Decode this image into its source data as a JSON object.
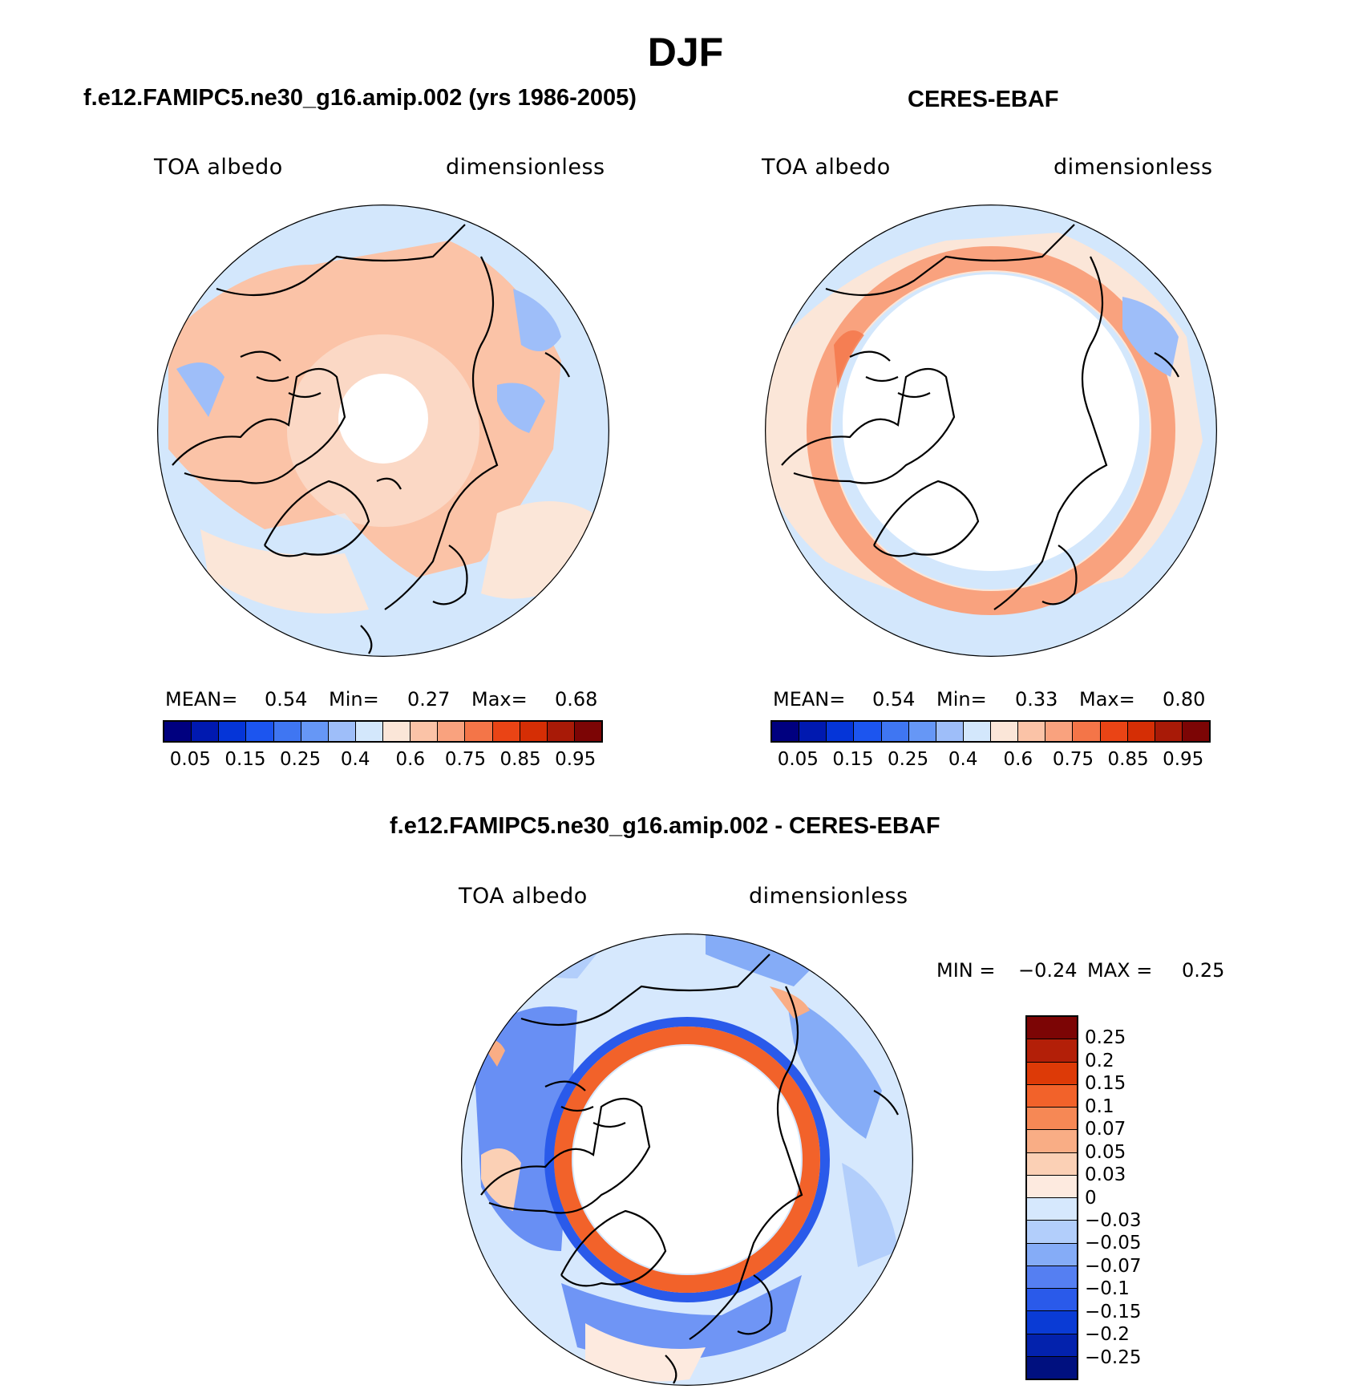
{
  "title": "DJF",
  "colors": {
    "seq": [
      "#00007f",
      "#0019b0",
      "#0535d8",
      "#1c55ef",
      "#3f76f2",
      "#6697f6",
      "#9ebef9",
      "#d3e7fc",
      "#fbe6d8",
      "#fbc3a7",
      "#f9a27e",
      "#f47548",
      "#ea4415",
      "#d52e05",
      "#a81a07",
      "#7c0505"
    ],
    "diff": [
      "#7c0505",
      "#b31f08",
      "#dd3a07",
      "#f2622a",
      "#f68855",
      "#f9ad85",
      "#fbd0b5",
      "#fdeadf",
      "#d6e8fd",
      "#b2cefb",
      "#85acf7",
      "#557ff2",
      "#2a5aea",
      "#0a3bd5",
      "#0322ad",
      "#00107f"
    ],
    "coast": "#000000",
    "land_light": "#fbe6d8",
    "land_mid": "#fbc3a7",
    "ocean_light": "#d3e7fc",
    "ocean_mid": "#9ebef9"
  },
  "panels": [
    {
      "title": "f.e12.FAMIPC5.ne30_g16.amip.002 (yrs 1986-2005)",
      "left_label": "TOA albedo",
      "right_label": "dimensionless",
      "stats": {
        "mean_label": "MEAN=",
        "mean": "0.54",
        "min_label": "Min=",
        "min": "0.27",
        "max_label": "Max=",
        "max": "0.68"
      },
      "ticks": [
        "0.05",
        "0.15",
        "0.25",
        "0.4",
        "0.6",
        "0.75",
        "0.85",
        "0.95"
      ]
    },
    {
      "title": "CERES-EBAF",
      "left_label": "TOA albedo",
      "right_label": "dimensionless",
      "stats": {
        "mean_label": "MEAN=",
        "mean": "0.54",
        "min_label": "Min=",
        "min": "0.33",
        "max_label": "Max=",
        "max": "0.80"
      },
      "ticks": [
        "0.05",
        "0.15",
        "0.25",
        "0.4",
        "0.6",
        "0.75",
        "0.85",
        "0.95"
      ]
    },
    {
      "title": "f.e12.FAMIPC5.ne30_g16.amip.002 - CERES-EBAF",
      "left_label": "TOA albedo",
      "right_label": "dimensionless",
      "minmax": {
        "min_label": "MIN =",
        "min": "−0.24",
        "max_label": "MAX =",
        "max": "0.25"
      },
      "ticks": [
        "0.25",
        "0.2",
        "0.15",
        "0.1",
        "0.07",
        "0.05",
        "0.03",
        "0",
        "−0.03",
        "−0.05",
        "−0.07",
        "−0.1",
        "−0.15",
        "−0.2",
        "−0.25"
      ]
    }
  ]
}
